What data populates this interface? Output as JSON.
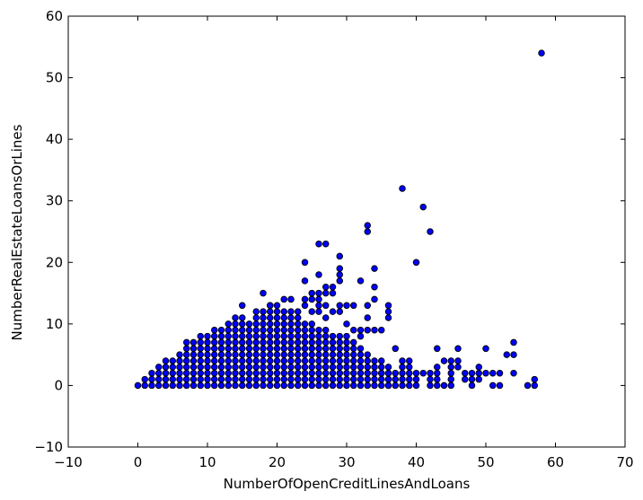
{
  "chart_data": {
    "type": "scatter",
    "title": "",
    "xlabel": "NumberOfOpenCreditLinesAndLoans",
    "ylabel": "NumberRealEstateLoansOrLines",
    "xlim": [
      -10,
      70
    ],
    "ylim": [
      -10,
      60
    ],
    "xticks": [
      -10,
      0,
      10,
      20,
      30,
      40,
      50,
      60,
      70
    ],
    "yticks": [
      -10,
      0,
      10,
      20,
      30,
      40,
      50,
      60
    ],
    "xtick_labels": [
      "−10",
      "0",
      "10",
      "20",
      "30",
      "40",
      "50",
      "60",
      "70"
    ],
    "ytick_labels": [
      "−10",
      "0",
      "10",
      "20",
      "30",
      "40",
      "50",
      "60"
    ],
    "grid": false,
    "legend": "none",
    "marker_color": "#0000ff",
    "marker_edge_color": "#000000",
    "dense_region": [
      {
        "x": 0,
        "ymax": 0
      },
      {
        "x": 1,
        "ymax": 1
      },
      {
        "x": 2,
        "ymax": 2
      },
      {
        "x": 3,
        "ymax": 3
      },
      {
        "x": 4,
        "ymax": 4
      },
      {
        "x": 5,
        "ymax": 4
      },
      {
        "x": 6,
        "ymax": 5
      },
      {
        "x": 7,
        "ymax": 7
      },
      {
        "x": 8,
        "ymax": 7
      },
      {
        "x": 9,
        "ymax": 8
      },
      {
        "x": 10,
        "ymax": 8
      },
      {
        "x": 11,
        "ymax": 9
      },
      {
        "x": 12,
        "ymax": 9
      },
      {
        "x": 13,
        "ymax": 10
      },
      {
        "x": 14,
        "ymax": 11
      },
      {
        "x": 15,
        "ymax": 11
      },
      {
        "x": 16,
        "ymax": 10
      },
      {
        "x": 17,
        "ymax": 12
      },
      {
        "x": 18,
        "ymax": 12
      },
      {
        "x": 19,
        "ymax": 13
      },
      {
        "x": 20,
        "ymax": 13
      },
      {
        "x": 21,
        "ymax": 12
      },
      {
        "x": 22,
        "ymax": 12
      },
      {
        "x": 23,
        "ymax": 11
      },
      {
        "x": 24,
        "ymax": 10
      },
      {
        "x": 25,
        "ymax": 10
      },
      {
        "x": 26,
        "ymax": 9
      },
      {
        "x": 27,
        "ymax": 9
      },
      {
        "x": 28,
        "ymax": 8
      },
      {
        "x": 29,
        "ymax": 8
      },
      {
        "x": 30,
        "ymax": 8
      },
      {
        "x": 31,
        "ymax": 7
      },
      {
        "x": 32,
        "ymax": 6
      },
      {
        "x": 33,
        "ymax": 5
      },
      {
        "x": 34,
        "ymax": 4
      },
      {
        "x": 35,
        "ymax": 4
      },
      {
        "x": 36,
        "ymax": 3
      }
    ],
    "points": [
      {
        "x": 15,
        "y": 13
      },
      {
        "x": 18,
        "y": 15
      },
      {
        "x": 19,
        "y": 13
      },
      {
        "x": 21,
        "y": 14
      },
      {
        "x": 22,
        "y": 14
      },
      {
        "x": 23,
        "y": 12
      },
      {
        "x": 24,
        "y": 13
      },
      {
        "x": 24,
        "y": 14
      },
      {
        "x": 24,
        "y": 17
      },
      {
        "x": 24,
        "y": 20
      },
      {
        "x": 25,
        "y": 12
      },
      {
        "x": 25,
        "y": 14
      },
      {
        "x": 25,
        "y": 15
      },
      {
        "x": 26,
        "y": 12
      },
      {
        "x": 26,
        "y": 13
      },
      {
        "x": 26,
        "y": 14
      },
      {
        "x": 26,
        "y": 15
      },
      {
        "x": 26,
        "y": 18
      },
      {
        "x": 26,
        "y": 23
      },
      {
        "x": 27,
        "y": 11
      },
      {
        "x": 27,
        "y": 13
      },
      {
        "x": 27,
        "y": 15
      },
      {
        "x": 27,
        "y": 16
      },
      {
        "x": 27,
        "y": 23
      },
      {
        "x": 28,
        "y": 12
      },
      {
        "x": 28,
        "y": 15
      },
      {
        "x": 28,
        "y": 16
      },
      {
        "x": 29,
        "y": 13
      },
      {
        "x": 29,
        "y": 17
      },
      {
        "x": 29,
        "y": 18
      },
      {
        "x": 29,
        "y": 19
      },
      {
        "x": 29,
        "y": 21
      },
      {
        "x": 29,
        "y": 12
      },
      {
        "x": 30,
        "y": 10
      },
      {
        "x": 30,
        "y": 13
      },
      {
        "x": 31,
        "y": 9
      },
      {
        "x": 31,
        "y": 13
      },
      {
        "x": 32,
        "y": 8
      },
      {
        "x": 32,
        "y": 9
      },
      {
        "x": 32,
        "y": 17
      },
      {
        "x": 33,
        "y": 9
      },
      {
        "x": 33,
        "y": 11
      },
      {
        "x": 33,
        "y": 13
      },
      {
        "x": 33,
        "y": 25
      },
      {
        "x": 33,
        "y": 26
      },
      {
        "x": 34,
        "y": 9
      },
      {
        "x": 34,
        "y": 14
      },
      {
        "x": 34,
        "y": 16
      },
      {
        "x": 34,
        "y": 19
      },
      {
        "x": 35,
        "y": 9
      },
      {
        "x": 35,
        "y": 2
      },
      {
        "x": 36,
        "y": 11
      },
      {
        "x": 36,
        "y": 12
      },
      {
        "x": 36,
        "y": 13
      },
      {
        "x": 36,
        "y": 0
      },
      {
        "x": 36,
        "y": 1
      },
      {
        "x": 36,
        "y": 2
      },
      {
        "x": 37,
        "y": 0
      },
      {
        "x": 37,
        "y": 1
      },
      {
        "x": 37,
        "y": 2
      },
      {
        "x": 37,
        "y": 6
      },
      {
        "x": 38,
        "y": 0
      },
      {
        "x": 38,
        "y": 1
      },
      {
        "x": 38,
        "y": 2
      },
      {
        "x": 38,
        "y": 3
      },
      {
        "x": 38,
        "y": 4
      },
      {
        "x": 38,
        "y": 32
      },
      {
        "x": 39,
        "y": 0
      },
      {
        "x": 39,
        "y": 1
      },
      {
        "x": 39,
        "y": 2
      },
      {
        "x": 39,
        "y": 3
      },
      {
        "x": 39,
        "y": 4
      },
      {
        "x": 40,
        "y": 0
      },
      {
        "x": 40,
        "y": 1
      },
      {
        "x": 40,
        "y": 2
      },
      {
        "x": 40,
        "y": 20
      },
      {
        "x": 41,
        "y": 2
      },
      {
        "x": 41,
        "y": 29
      },
      {
        "x": 42,
        "y": 0
      },
      {
        "x": 42,
        "y": 1
      },
      {
        "x": 42,
        "y": 2
      },
      {
        "x": 42,
        "y": 25
      },
      {
        "x": 43,
        "y": 0
      },
      {
        "x": 43,
        "y": 1
      },
      {
        "x": 43,
        "y": 2
      },
      {
        "x": 43,
        "y": 3
      },
      {
        "x": 43,
        "y": 6
      },
      {
        "x": 44,
        "y": 0
      },
      {
        "x": 44,
        "y": 4
      },
      {
        "x": 45,
        "y": 0
      },
      {
        "x": 45,
        "y": 1
      },
      {
        "x": 45,
        "y": 2
      },
      {
        "x": 45,
        "y": 3
      },
      {
        "x": 45,
        "y": 4
      },
      {
        "x": 46,
        "y": 3
      },
      {
        "x": 46,
        "y": 4
      },
      {
        "x": 46,
        "y": 6
      },
      {
        "x": 47,
        "y": 1
      },
      {
        "x": 47,
        "y": 2
      },
      {
        "x": 48,
        "y": 0
      },
      {
        "x": 48,
        "y": 1
      },
      {
        "x": 48,
        "y": 2
      },
      {
        "x": 49,
        "y": 1
      },
      {
        "x": 49,
        "y": 2
      },
      {
        "x": 49,
        "y": 3
      },
      {
        "x": 50,
        "y": 2
      },
      {
        "x": 50,
        "y": 6
      },
      {
        "x": 51,
        "y": 0
      },
      {
        "x": 51,
        "y": 2
      },
      {
        "x": 52,
        "y": 0
      },
      {
        "x": 52,
        "y": 2
      },
      {
        "x": 53,
        "y": 5
      },
      {
        "x": 54,
        "y": 2
      },
      {
        "x": 54,
        "y": 5
      },
      {
        "x": 54,
        "y": 7
      },
      {
        "x": 56,
        "y": 0
      },
      {
        "x": 57,
        "y": 0
      },
      {
        "x": 57,
        "y": 1
      },
      {
        "x": 58,
        "y": 54
      }
    ]
  }
}
